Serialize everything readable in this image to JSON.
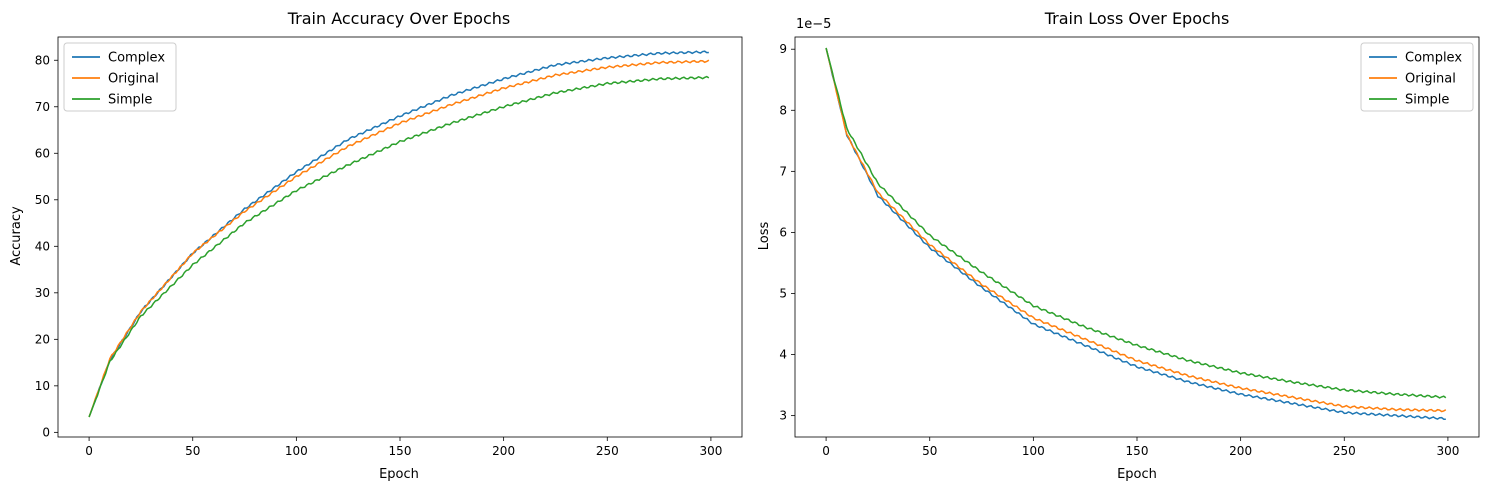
{
  "chart_data": [
    {
      "type": "line",
      "title": "Train Accuracy Over Epochs",
      "xlabel": "Epoch",
      "ylabel": "Accuracy",
      "xlim": [
        -15,
        315
      ],
      "ylim": [
        -1,
        85
      ],
      "xticks": [
        0,
        50,
        100,
        150,
        200,
        250,
        300
      ],
      "yticks": [
        0,
        10,
        20,
        30,
        40,
        50,
        60,
        70,
        80
      ],
      "ytick_labels": [
        "0",
        "10",
        "20",
        "30",
        "40",
        "50",
        "60",
        "70",
        "80"
      ],
      "legend_position": "top-left",
      "grid": false,
      "x": [
        0,
        10,
        25,
        50,
        75,
        100,
        125,
        150,
        175,
        200,
        225,
        250,
        275,
        299
      ],
      "series": [
        {
          "name": "Complex",
          "color": "#1f77b4",
          "values": [
            3.3,
            15.5,
            26,
            38.5,
            48,
            56,
            63,
            68,
            72.5,
            76,
            79,
            80.5,
            81.5,
            81.8
          ]
        },
        {
          "name": "Original",
          "color": "#ff7f0e",
          "values": [
            3.3,
            15.8,
            26,
            38.5,
            47.5,
            55,
            61.5,
            66.5,
            70.5,
            74,
            76.8,
            78.5,
            79.5,
            79.8
          ]
        },
        {
          "name": "Simple",
          "color": "#2ca02c",
          "values": [
            3.3,
            15.2,
            25,
            36,
            45,
            52,
            57.5,
            62.5,
            66.5,
            70,
            73,
            75,
            76,
            76.3
          ]
        }
      ]
    },
    {
      "type": "line",
      "title": "Train Loss Over Epochs",
      "xlabel": "Epoch",
      "ylabel": "Loss",
      "offset_text": "1e−5",
      "xlim": [
        -15,
        315
      ],
      "ylim": [
        2.65,
        9.2
      ],
      "xticks": [
        0,
        50,
        100,
        150,
        200,
        250,
        300
      ],
      "yticks": [
        3,
        4,
        5,
        6,
        7,
        8,
        9
      ],
      "ytick_labels": [
        "3",
        "4",
        "5",
        "6",
        "7",
        "8",
        "9"
      ],
      "legend_position": "top-right",
      "grid": false,
      "x": [
        0,
        10,
        25,
        50,
        75,
        100,
        125,
        150,
        175,
        200,
        225,
        250,
        275,
        299
      ],
      "series": [
        {
          "name": "Complex",
          "color": "#1f77b4",
          "values": [
            9.02,
            7.6,
            6.6,
            5.75,
            5.1,
            4.5,
            4.15,
            3.8,
            3.55,
            3.35,
            3.2,
            3.05,
            3.0,
            2.95
          ]
        },
        {
          "name": "Original",
          "color": "#ff7f0e",
          "values": [
            9.02,
            7.6,
            6.65,
            5.8,
            5.15,
            4.6,
            4.25,
            3.9,
            3.65,
            3.45,
            3.3,
            3.15,
            3.1,
            3.08
          ]
        },
        {
          "name": "Simple",
          "color": "#2ca02c",
          "values": [
            9.02,
            7.7,
            6.8,
            5.95,
            5.35,
            4.8,
            4.45,
            4.15,
            3.9,
            3.7,
            3.55,
            3.42,
            3.35,
            3.3
          ]
        }
      ]
    }
  ]
}
